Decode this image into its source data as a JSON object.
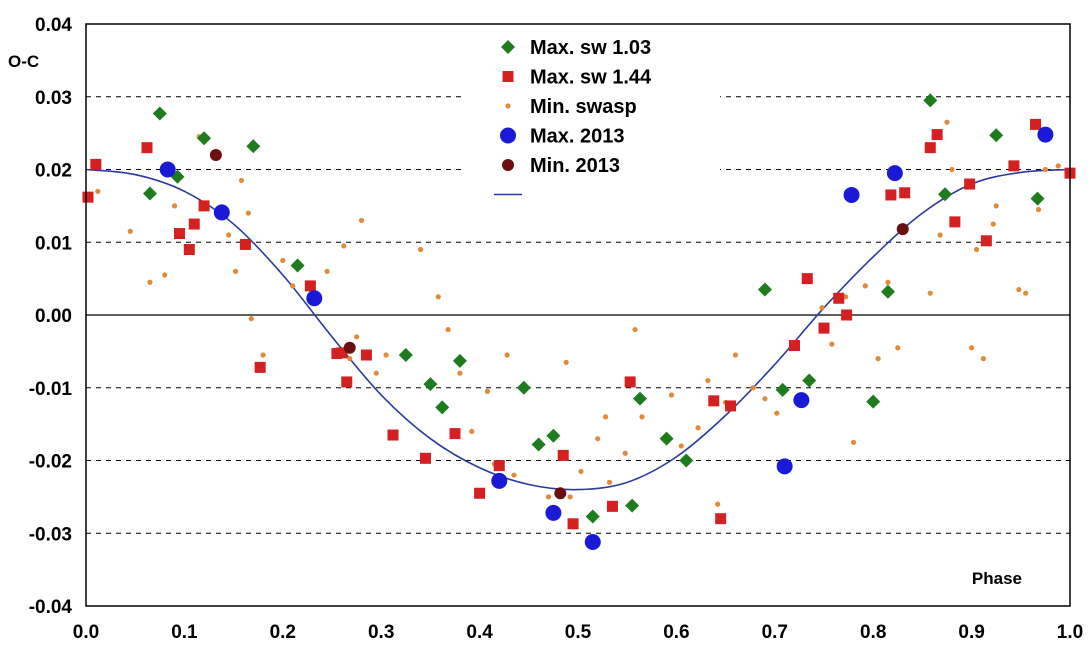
{
  "chart_data": {
    "type": "scatter",
    "title": "",
    "xlabel": "Phase",
    "ylabel": "O-C",
    "xlim": [
      0.0,
      1.0
    ],
    "ylim": [
      -0.04,
      0.04
    ],
    "x_ticks": [
      "0.0",
      "0.1",
      "0.2",
      "0.3",
      "0.4",
      "0.5",
      "0.6",
      "0.7",
      "0.8",
      "0.9",
      "1.0"
    ],
    "y_ticks": [
      "0.04",
      "0.03",
      "0.02",
      "0.01",
      "0.00",
      "-0.01",
      "-0.02",
      "-0.03",
      "-0.04"
    ],
    "grid": "horizontal dashed",
    "legend_position": "top-center",
    "series": [
      {
        "name": "Max. sw 1.03",
        "marker": "diamond",
        "color": "#1e7b1e",
        "points": [
          [
            0.065,
            0.0167
          ],
          [
            0.075,
            0.0277
          ],
          [
            0.093,
            0.019
          ],
          [
            0.12,
            0.0243
          ],
          [
            0.17,
            0.0232
          ],
          [
            0.215,
            0.0068
          ],
          [
            0.325,
            -0.0055
          ],
          [
            0.35,
            -0.0095
          ],
          [
            0.362,
            -0.0127
          ],
          [
            0.38,
            -0.0063
          ],
          [
            0.445,
            -0.01
          ],
          [
            0.46,
            -0.0178
          ],
          [
            0.475,
            -0.0166
          ],
          [
            0.515,
            -0.0277
          ],
          [
            0.555,
            -0.0262
          ],
          [
            0.563,
            -0.0115
          ],
          [
            0.59,
            -0.017
          ],
          [
            0.61,
            -0.02
          ],
          [
            0.69,
            0.0035
          ],
          [
            0.708,
            -0.0103
          ],
          [
            0.735,
            -0.009
          ],
          [
            0.8,
            -0.0119
          ],
          [
            0.815,
            0.0032
          ],
          [
            0.858,
            0.0295
          ],
          [
            0.873,
            0.0166
          ],
          [
            0.925,
            0.0247
          ],
          [
            0.967,
            0.016
          ]
        ]
      },
      {
        "name": "Max. sw 1.44",
        "marker": "square",
        "color": "#d42020",
        "points": [
          [
            0.002,
            0.0162
          ],
          [
            0.01,
            0.0207
          ],
          [
            0.062,
            0.023
          ],
          [
            0.095,
            0.0112
          ],
          [
            0.105,
            0.009
          ],
          [
            0.11,
            0.0125
          ],
          [
            0.12,
            0.015
          ],
          [
            0.162,
            0.0097
          ],
          [
            0.177,
            -0.0072
          ],
          [
            0.228,
            0.004
          ],
          [
            0.255,
            -0.0053
          ],
          [
            0.26,
            -0.0052
          ],
          [
            0.265,
            -0.0092
          ],
          [
            0.285,
            -0.0055
          ],
          [
            0.312,
            -0.0165
          ],
          [
            0.345,
            -0.0197
          ],
          [
            0.375,
            -0.0163
          ],
          [
            0.4,
            -0.0245
          ],
          [
            0.42,
            -0.0207
          ],
          [
            0.485,
            -0.0193
          ],
          [
            0.495,
            -0.0287
          ],
          [
            0.535,
            -0.0263
          ],
          [
            0.553,
            -0.0092
          ],
          [
            0.638,
            -0.0118
          ],
          [
            0.645,
            -0.028
          ],
          [
            0.655,
            -0.0125
          ],
          [
            0.72,
            -0.0042
          ],
          [
            0.733,
            0.005
          ],
          [
            0.75,
            -0.0018
          ],
          [
            0.765,
            0.0023
          ],
          [
            0.773,
            0.0
          ],
          [
            0.818,
            0.0165
          ],
          [
            0.832,
            0.0168
          ],
          [
            0.858,
            0.023
          ],
          [
            0.865,
            0.0248
          ],
          [
            0.883,
            0.0128
          ],
          [
            0.898,
            0.018
          ],
          [
            0.915,
            0.0102
          ],
          [
            0.943,
            0.0205
          ],
          [
            0.965,
            0.0262
          ],
          [
            1.0,
            0.0195
          ]
        ]
      },
      {
        "name": "Min. swasp",
        "marker": "dot",
        "color": "#e08a3a",
        "points": [
          [
            0.012,
            0.017
          ],
          [
            0.045,
            0.0115
          ],
          [
            0.065,
            0.0045
          ],
          [
            0.08,
            0.0055
          ],
          [
            0.09,
            0.015
          ],
          [
            0.115,
            0.0245
          ],
          [
            0.145,
            0.011
          ],
          [
            0.152,
            0.006
          ],
          [
            0.158,
            0.0185
          ],
          [
            0.165,
            0.014
          ],
          [
            0.168,
            -0.0005
          ],
          [
            0.18,
            -0.0055
          ],
          [
            0.2,
            0.0075
          ],
          [
            0.21,
            0.004
          ],
          [
            0.245,
            0.006
          ],
          [
            0.262,
            0.0095
          ],
          [
            0.268,
            -0.006
          ],
          [
            0.275,
            -0.003
          ],
          [
            0.28,
            0.013
          ],
          [
            0.295,
            -0.008
          ],
          [
            0.305,
            -0.0055
          ],
          [
            0.34,
            0.009
          ],
          [
            0.358,
            0.0025
          ],
          [
            0.368,
            -0.002
          ],
          [
            0.38,
            -0.008
          ],
          [
            0.392,
            -0.016
          ],
          [
            0.408,
            -0.0105
          ],
          [
            0.415,
            -0.0205
          ],
          [
            0.428,
            -0.0055
          ],
          [
            0.435,
            -0.022
          ],
          [
            0.462,
            -0.018
          ],
          [
            0.47,
            -0.025
          ],
          [
            0.488,
            -0.0065
          ],
          [
            0.492,
            -0.025
          ],
          [
            0.503,
            -0.0215
          ],
          [
            0.52,
            -0.017
          ],
          [
            0.528,
            -0.014
          ],
          [
            0.532,
            -0.023
          ],
          [
            0.548,
            -0.019
          ],
          [
            0.558,
            -0.002
          ],
          [
            0.565,
            -0.014
          ],
          [
            0.595,
            -0.011
          ],
          [
            0.605,
            -0.018
          ],
          [
            0.622,
            -0.0155
          ],
          [
            0.632,
            -0.009
          ],
          [
            0.642,
            -0.026
          ],
          [
            0.65,
            -0.012
          ],
          [
            0.66,
            -0.0055
          ],
          [
            0.678,
            -0.01
          ],
          [
            0.69,
            -0.0115
          ],
          [
            0.702,
            -0.0135
          ],
          [
            0.748,
            0.001
          ],
          [
            0.758,
            -0.004
          ],
          [
            0.772,
            0.0025
          ],
          [
            0.78,
            -0.0175
          ],
          [
            0.792,
            0.004
          ],
          [
            0.805,
            -0.006
          ],
          [
            0.815,
            0.0045
          ],
          [
            0.825,
            -0.0045
          ],
          [
            0.858,
            0.003
          ],
          [
            0.868,
            0.011
          ],
          [
            0.875,
            0.0265
          ],
          [
            0.88,
            0.02
          ],
          [
            0.9,
            -0.0045
          ],
          [
            0.905,
            0.009
          ],
          [
            0.912,
            -0.006
          ],
          [
            0.922,
            0.0125
          ],
          [
            0.925,
            0.015
          ],
          [
            0.948,
            0.0035
          ],
          [
            0.955,
            0.003
          ],
          [
            0.968,
            0.0145
          ],
          [
            0.975,
            0.02
          ],
          [
            0.988,
            0.0205
          ]
        ]
      },
      {
        "name": "Max. 2013",
        "marker": "circle",
        "color": "#1a1ad6",
        "points": [
          [
            0.083,
            0.02
          ],
          [
            0.138,
            0.0141
          ],
          [
            0.232,
            0.0023
          ],
          [
            0.42,
            -0.0228
          ],
          [
            0.475,
            -0.0272
          ],
          [
            0.515,
            -0.0312
          ],
          [
            0.71,
            -0.0208
          ],
          [
            0.727,
            -0.0117
          ],
          [
            0.778,
            0.0165
          ],
          [
            0.822,
            0.0195
          ],
          [
            0.975,
            0.0248
          ]
        ]
      },
      {
        "name": "Min. 2013",
        "marker": "dot-large",
        "color": "#6a1010",
        "points": [
          [
            0.132,
            0.022
          ],
          [
            0.268,
            -0.0045
          ],
          [
            0.482,
            -0.0245
          ],
          [
            0.83,
            0.0118
          ]
        ]
      },
      {
        "name": "",
        "marker": "line",
        "color": "#2a3aa0",
        "points": [
          [
            0.0,
            0.02
          ],
          [
            0.05,
            0.0193
          ],
          [
            0.1,
            0.017
          ],
          [
            0.15,
            0.0125
          ],
          [
            0.2,
            0.0055
          ],
          [
            0.25,
            -0.003
          ],
          [
            0.3,
            -0.011
          ],
          [
            0.35,
            -0.017
          ],
          [
            0.4,
            -0.021
          ],
          [
            0.45,
            -0.0233
          ],
          [
            0.5,
            -0.024
          ],
          [
            0.55,
            -0.023
          ],
          [
            0.6,
            -0.0195
          ],
          [
            0.65,
            -0.0138
          ],
          [
            0.7,
            -0.0068
          ],
          [
            0.75,
            0.001
          ],
          [
            0.8,
            0.008
          ],
          [
            0.85,
            0.014
          ],
          [
            0.9,
            0.018
          ],
          [
            0.95,
            0.0196
          ],
          [
            1.0,
            0.02
          ]
        ]
      }
    ]
  }
}
